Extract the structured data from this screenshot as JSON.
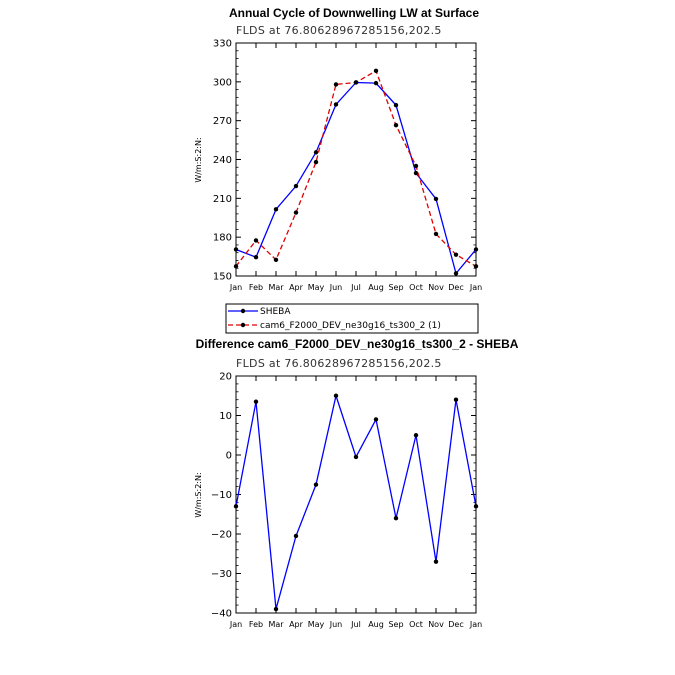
{
  "chart_data": [
    {
      "type": "line",
      "title": "Annual Cycle of Downwelling LW at Surface",
      "subtitle": "FLDS at 76.80628967285156,202.5",
      "ylabel": "W/m:S:2:N:",
      "xlabel": "",
      "categories": [
        "Jan",
        "Feb",
        "Mar",
        "Apr",
        "May",
        "Jun",
        "Jul",
        "Aug",
        "Sep",
        "Oct",
        "Nov",
        "Dec",
        "Jan"
      ],
      "ylim": [
        150,
        330
      ],
      "yticks": [
        150,
        180,
        210,
        240,
        270,
        300,
        330
      ],
      "grid": false,
      "legend_position": "below",
      "series": [
        {
          "name": "SHEBA",
          "color": "#0000ff",
          "dash": "solid",
          "values": [
            170.5,
            164.5,
            201.5,
            219.5,
            245.5,
            282.5,
            299.5,
            299.0,
            282.0,
            229.5,
            209.5,
            152.0,
            170.5
          ]
        },
        {
          "name": "cam6_F2000_DEV_ne30g16_ts300_2 (1)",
          "color": "#e00000",
          "dash": "dashed",
          "values": [
            157.5,
            177.5,
            162.5,
            199.0,
            238.0,
            298.0,
            299.5,
            308.5,
            266.5,
            235.0,
            182.5,
            166.5,
            157.5
          ]
        }
      ]
    },
    {
      "type": "line",
      "title": "Difference cam6_F2000_DEV_ne30g16_ts300_2 - SHEBA",
      "subtitle": "FLDS at 76.80628967285156,202.5",
      "ylabel": "W/m:S:2:N:",
      "xlabel": "",
      "categories": [
        "Jan",
        "Feb",
        "Mar",
        "Apr",
        "May",
        "Jun",
        "Jul",
        "Aug",
        "Sep",
        "Oct",
        "Nov",
        "Dec",
        "Jan"
      ],
      "ylim": [
        -40,
        20
      ],
      "yticks": [
        -40,
        -30,
        -20,
        -10,
        0,
        10,
        20
      ],
      "ytick_labels": [
        "−40",
        "−30",
        "−20",
        "−10",
        "0",
        "10",
        "20"
      ],
      "grid": false,
      "series": [
        {
          "name": "",
          "color": "#0000ff",
          "dash": "solid",
          "values": [
            -13.0,
            13.5,
            -39.0,
            -20.5,
            -7.5,
            15.0,
            -0.5,
            9.0,
            -16.0,
            5.0,
            -27.0,
            14.0,
            -13.0
          ]
        }
      ]
    }
  ]
}
